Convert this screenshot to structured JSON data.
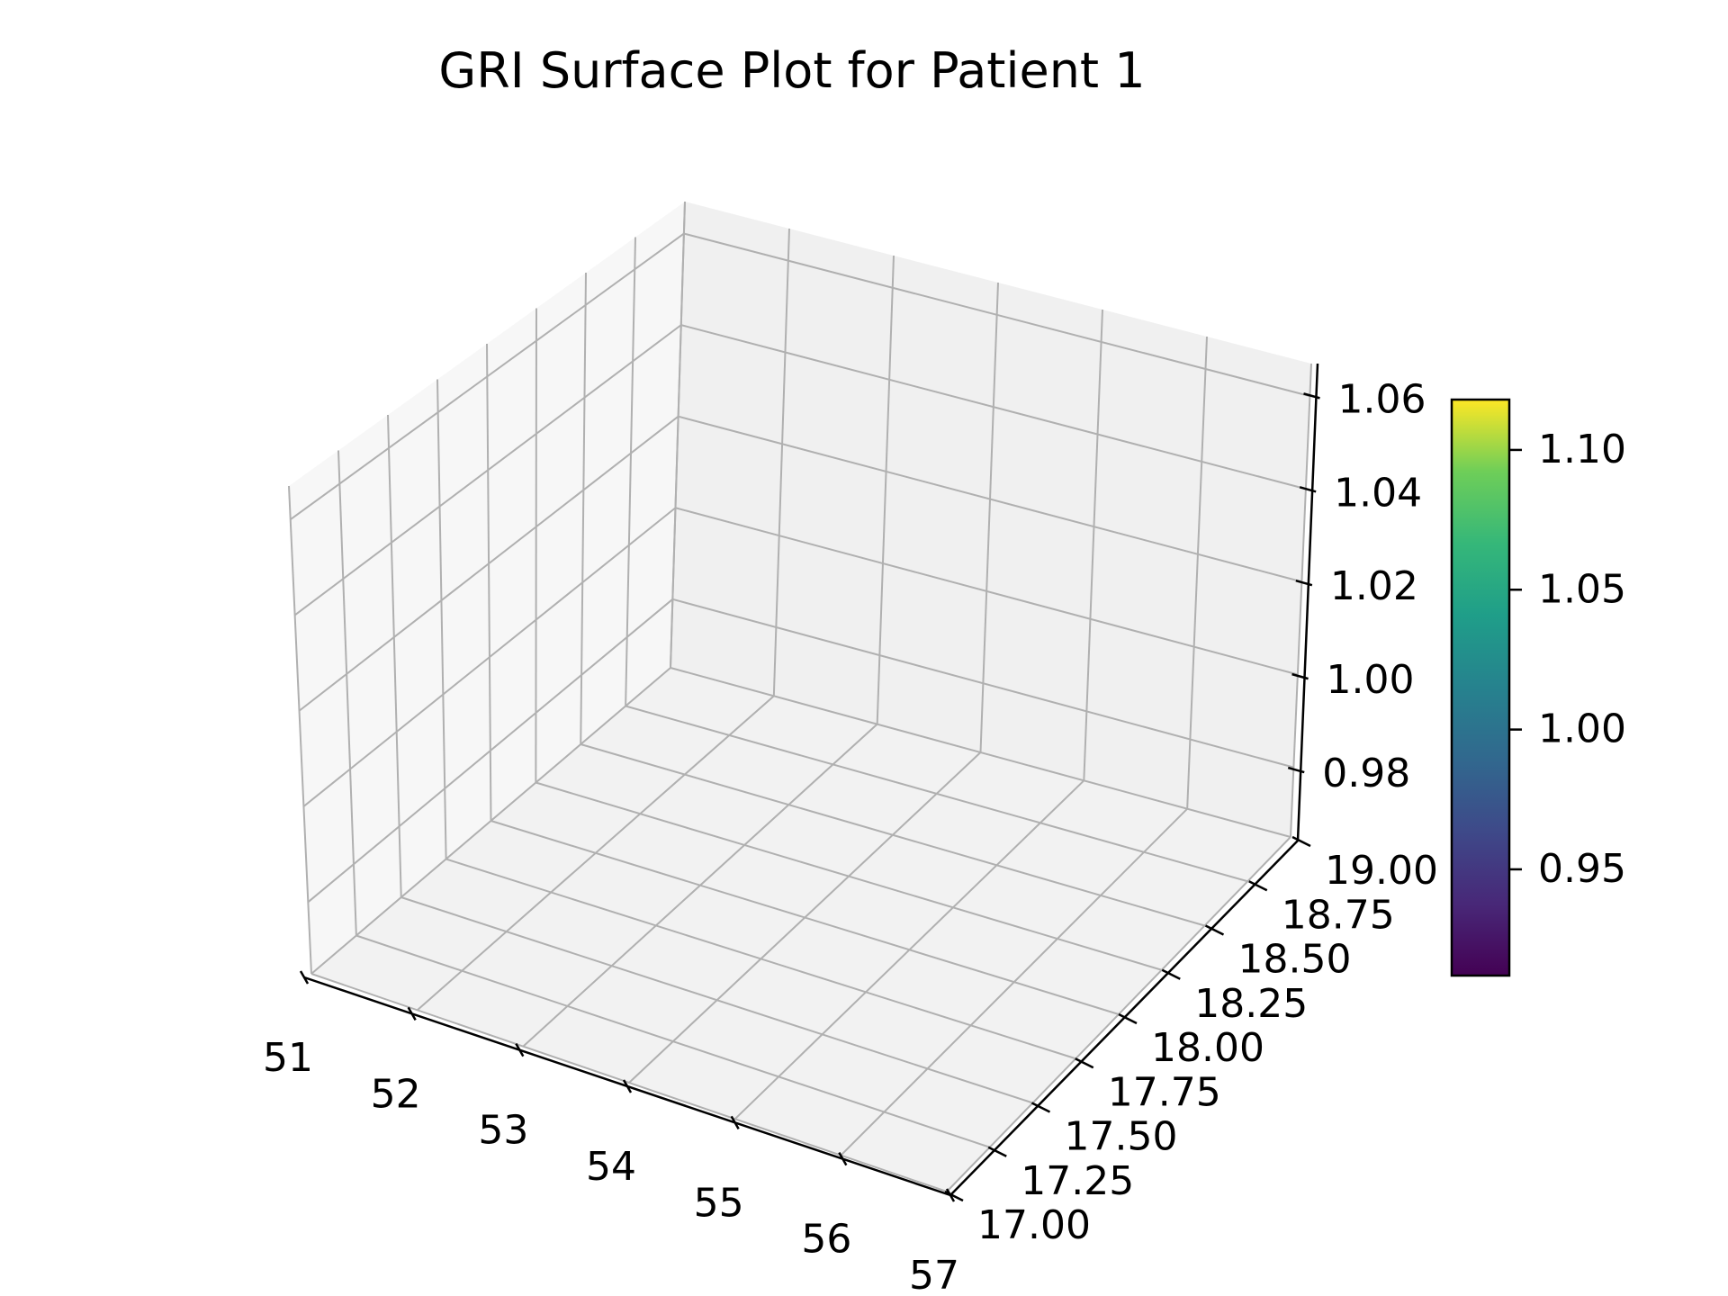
{
  "chart_data": {
    "type": "surface",
    "title": "GRI Surface Plot for Patient 1",
    "xlabel": "",
    "ylabel": "",
    "zlabel": "",
    "x_ticks": [
      "51",
      "52",
      "53",
      "54",
      "55",
      "56",
      "57"
    ],
    "x_range": [
      51,
      57
    ],
    "y_ticks": [
      "17.00",
      "17.25",
      "17.50",
      "17.75",
      "18.00",
      "18.25",
      "18.50",
      "18.75",
      "19.00"
    ],
    "y_range": [
      17,
      19
    ],
    "z_ticks": [
      "0.98",
      "1.00",
      "1.02",
      "1.04",
      "1.06"
    ],
    "z_range": [
      0.965,
      1.067
    ],
    "grid": true,
    "surface_visible": false,
    "colorbar": {
      "colormap": "viridis",
      "ticks": [
        "0.95",
        "1.00",
        "1.05",
        "1.10"
      ],
      "range": [
        0.912,
        1.118
      ],
      "placement": "right"
    }
  }
}
